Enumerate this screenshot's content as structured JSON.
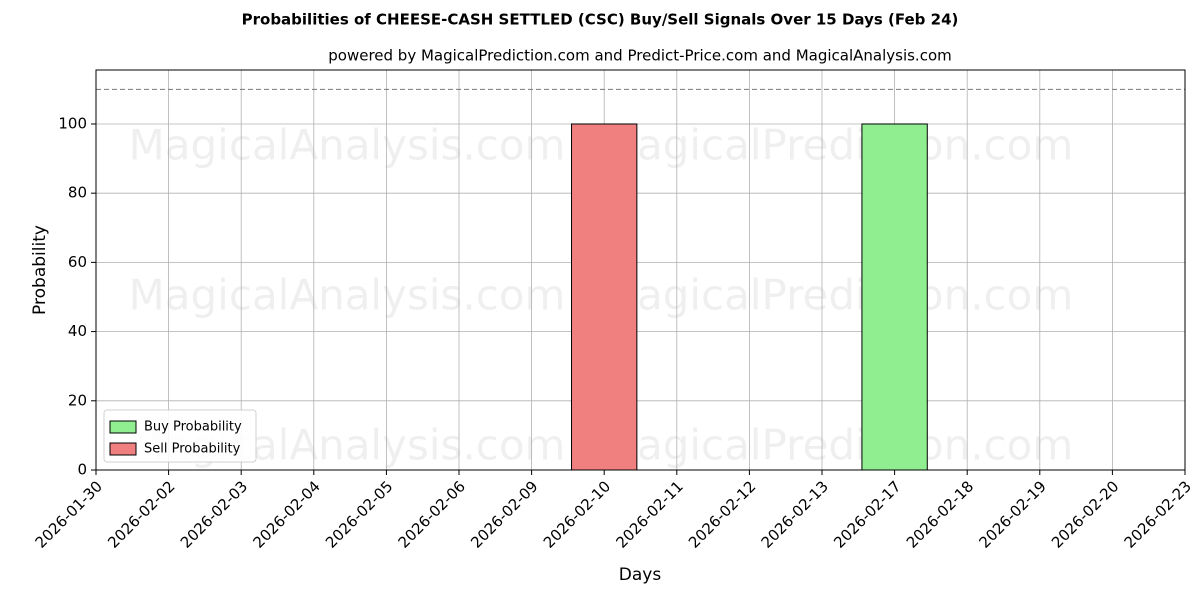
{
  "chart_data": {
    "type": "bar",
    "title": "Probabilities of CHEESE-CASH SETTLED (CSC) Buy/Sell Signals Over 15 Days (Feb 24)",
    "subtitle": "powered by MagicalPrediction.com and Predict-Price.com and MagicalAnalysis.com",
    "x_label": "Days",
    "y_label": "Probability",
    "categories": [
      "2026-01-30",
      "2026-02-02",
      "2026-02-03",
      "2026-02-04",
      "2026-02-05",
      "2026-02-06",
      "2026-02-09",
      "2026-02-10",
      "2026-02-11",
      "2026-02-12",
      "2026-02-13",
      "2026-02-17",
      "2026-02-18",
      "2026-02-19",
      "2026-02-20",
      "2026-02-23"
    ],
    "series": [
      {
        "name": "Buy Probability",
        "color": "#90ee90",
        "values": [
          0,
          0,
          0,
          0,
          0,
          0,
          0,
          0,
          0,
          0,
          0,
          100,
          0,
          0,
          0,
          0
        ]
      },
      {
        "name": "Sell Probability",
        "color": "#f08080",
        "values": [
          0,
          0,
          0,
          0,
          0,
          0,
          0,
          100,
          0,
          0,
          0,
          0,
          0,
          0,
          0,
          0
        ]
      }
    ],
    "ylim": [
      0,
      115.6
    ],
    "yticks": [
      0,
      20,
      40,
      60,
      80,
      100
    ],
    "hline": 110,
    "grid": true,
    "legend": "lower left",
    "watermarks": [
      "MagicalAnalysis.com",
      "MagicalPrediction.com",
      "MagicalAnalysis.com",
      "MagicalPrediction.com",
      "MagicalAnalysis.com",
      "MagicalPrediction.com"
    ]
  }
}
